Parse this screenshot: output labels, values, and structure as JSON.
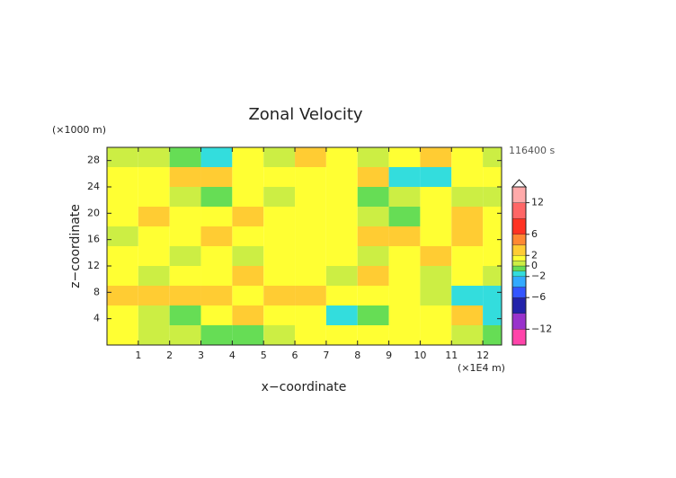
{
  "chart_data": {
    "type": "contour",
    "title": "Zonal Velocity",
    "time_label": "116400 s",
    "x_label": "x−coordinate",
    "y_label": "z−coordinate",
    "x_unit": "(×1E4 m)",
    "y_unit": "(×1000 m)",
    "xlim": [
      0,
      12.6
    ],
    "ylim": [
      0,
      30
    ],
    "xticks": [
      1,
      2,
      3,
      4,
      5,
      6,
      7,
      8,
      9,
      10,
      11,
      12
    ],
    "yticks": [
      4,
      8,
      12,
      16,
      20,
      24,
      28
    ],
    "x": [
      0.5,
      1.5,
      2.5,
      3.5,
      4.5,
      5.5,
      6.5,
      7.5,
      8.5,
      9.5,
      10.5,
      11.5,
      12.5
    ],
    "y": [
      1.5,
      4.5,
      7.5,
      10.5,
      13.5,
      16.5,
      19.5,
      22.5,
      25.5,
      28.5
    ],
    "z": [
      [
        1,
        0.5,
        0.5,
        -1,
        -1,
        0.5,
        1,
        1.5,
        1,
        1,
        1.5,
        0.5,
        -1
      ],
      [
        1.5,
        0.5,
        -1,
        1.5,
        3,
        1,
        1,
        -1.5,
        -1,
        1.5,
        1,
        3,
        -2
      ],
      [
        3,
        3,
        3,
        3,
        1.5,
        3,
        3,
        1.5,
        1,
        1.5,
        0.5,
        -1.5,
        -2
      ],
      [
        1,
        0.5,
        1.5,
        1,
        3,
        1.5,
        1,
        0.5,
        3,
        1.5,
        0.5,
        1,
        0.5
      ],
      [
        1.5,
        1,
        0.5,
        1.5,
        0.5,
        1,
        1.5,
        1,
        0.5,
        1.5,
        3,
        1,
        1
      ],
      [
        0.5,
        1.5,
        1,
        3,
        1.5,
        1,
        1.5,
        1.5,
        3,
        3,
        1.5,
        3,
        1.5
      ],
      [
        1.5,
        3,
        1.5,
        1,
        3,
        1.5,
        1,
        1.5,
        0.5,
        -1,
        1.5,
        3,
        1
      ],
      [
        1.5,
        1,
        0.5,
        -1,
        1,
        0.5,
        1.5,
        1,
        -1,
        0.5,
        1,
        0.5,
        0.5
      ],
      [
        1,
        1.5,
        3,
        3,
        1.5,
        1,
        1.5,
        1.5,
        3,
        -1.5,
        -1.5,
        1,
        1.5
      ],
      [
        0.5,
        0.5,
        -1,
        -1.5,
        1,
        0.5,
        3,
        1,
        0.5,
        1,
        3,
        1.5,
        0.5
      ]
    ],
    "clim": [
      -15,
      15
    ],
    "levels": [
      -15,
      -12,
      -9,
      -6,
      -4,
      -2,
      -1,
      0,
      1,
      2,
      4,
      6,
      9,
      12,
      15
    ],
    "colors": [
      "#ff44aa",
      "#9933cc",
      "#2222aa",
      "#3355ff",
      "#33aaff",
      "#33dddd",
      "#66dd55",
      "#ccee44",
      "#ffff33",
      "#ffcc33",
      "#ff8833",
      "#ff3322",
      "#ff6666",
      "#ffaaaa"
    ],
    "cticks": [
      12,
      6,
      2,
      0,
      {
        "value": -2,
        "label": "−2"
      },
      {
        "value": -6,
        "label": "−6"
      },
      {
        "value": -12,
        "label": "−12"
      }
    ]
  }
}
